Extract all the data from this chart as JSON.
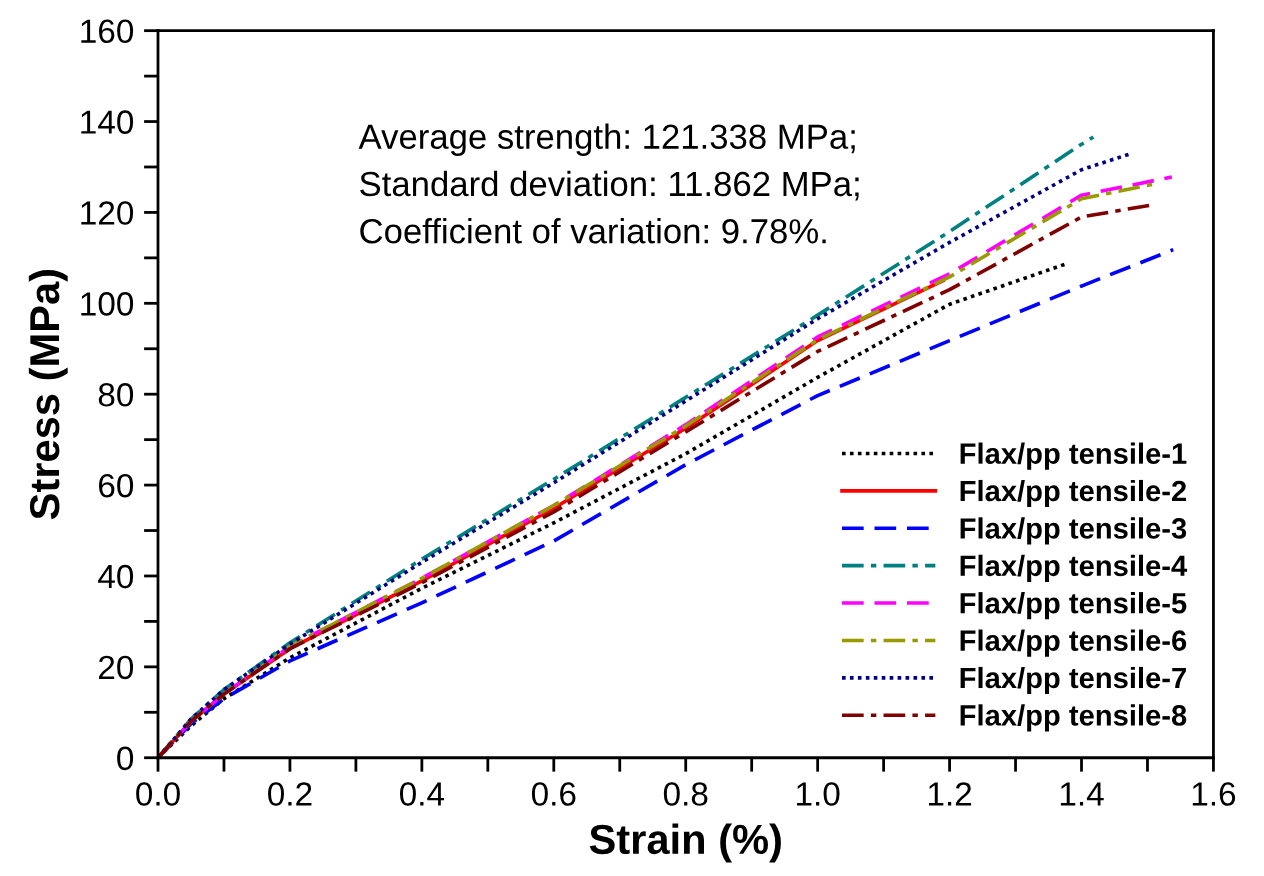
{
  "chart_data": {
    "type": "line",
    "xlabel": "Strain (%)",
    "ylabel": "Stress (MPa)",
    "xlim": [
      0,
      1.6
    ],
    "ylim": [
      0,
      160
    ],
    "xticks": [
      {
        "value": 0,
        "label": "0.0"
      },
      {
        "value": 0.1,
        "label": null
      },
      {
        "value": 0.2,
        "label": "0.2"
      },
      {
        "value": 0.3,
        "label": null
      },
      {
        "value": 0.4,
        "label": "0.4"
      },
      {
        "value": 0.5,
        "label": null
      },
      {
        "value": 0.6,
        "label": "0.6"
      },
      {
        "value": 0.7,
        "label": null
      },
      {
        "value": 0.8,
        "label": "0.8"
      },
      {
        "value": 0.9,
        "label": null
      },
      {
        "value": 1.0,
        "label": "1.0"
      },
      {
        "value": 1.1,
        "label": null
      },
      {
        "value": 1.2,
        "label": "1.2"
      },
      {
        "value": 1.3,
        "label": null
      },
      {
        "value": 1.4,
        "label": "1.4"
      },
      {
        "value": 1.5,
        "label": null
      },
      {
        "value": 1.6,
        "label": "1.6"
      }
    ],
    "yticks": [
      0,
      {
        "value": 10,
        "label": null
      },
      20,
      {
        "value": 30,
        "label": null
      },
      40,
      {
        "value": 50,
        "label": null
      },
      60,
      {
        "value": 70,
        "label": null
      },
      80,
      {
        "value": 90,
        "label": null
      },
      100,
      {
        "value": 110,
        "label": null
      },
      120,
      {
        "value": 130,
        "label": null
      },
      140,
      {
        "value": 150,
        "label": null
      },
      160
    ],
    "grid": false,
    "legend": "bottom right",
    "annotations": [
      "Average strength: 121.338 MPa;",
      "Standard deviation: 11.862 MPa;",
      "Coefficient of variation: 9.78%."
    ],
    "series": [
      {
        "name": "Flax/pp tensile-1",
        "color": "#000000",
        "line_style": "dotted",
        "x": [
          0,
          0.05,
          0.1,
          0.2,
          0.4,
          0.6,
          0.8,
          1.0,
          1.2,
          1.375
        ],
        "values": [
          0,
          7,
          13,
          22,
          37.3,
          51.7,
          66.9,
          83.7,
          99.8,
          108.6
        ]
      },
      {
        "name": "Flax/pp tensile-2",
        "color": "#ff0000",
        "line_style": "solid",
        "x": [
          0,
          0.05,
          0.1,
          0.2,
          0.4,
          0.6,
          0.8,
          1.0,
          1.19
        ],
        "values": [
          0,
          8,
          14,
          24,
          38.9,
          54.9,
          72.5,
          91.8,
          105
        ]
      },
      {
        "name": "Flax/pp tensile-3",
        "color": "#0000ff",
        "line_style": "dashed",
        "x": [
          0,
          0.05,
          0.1,
          0.2,
          0.4,
          0.6,
          0.8,
          1.0,
          1.2,
          1.4,
          1.539
        ],
        "values": [
          0,
          7.5,
          13,
          21.3,
          34.1,
          47.7,
          64.5,
          79.7,
          91.8,
          103.8,
          111.8
        ]
      },
      {
        "name": "Flax/pp tensile-4",
        "color": "#008080",
        "line_style": "dashdot",
        "x": [
          0,
          0.05,
          0.1,
          0.2,
          0.4,
          0.6,
          0.8,
          1.0,
          1.2,
          1.4,
          1.418
        ],
        "values": [
          0,
          8.5,
          15,
          25.3,
          43.7,
          61.3,
          79.3,
          97.4,
          115.8,
          135,
          136.6
        ]
      },
      {
        "name": "Flax/pp tensile-5",
        "color": "#ff00ff",
        "line_style": "dashed",
        "x": [
          0,
          0.05,
          0.1,
          0.2,
          0.4,
          0.6,
          0.8,
          1.0,
          1.2,
          1.4,
          1.537
        ],
        "values": [
          0,
          8,
          14,
          24.5,
          39.5,
          55.5,
          73.3,
          92.6,
          106.5,
          123.8,
          127.8
        ]
      },
      {
        "name": "Flax/pp tensile-6",
        "color": "#999900",
        "line_style": "dashdot",
        "x": [
          0,
          0.05,
          0.1,
          0.2,
          0.4,
          0.6,
          0.8,
          1.0,
          1.2,
          1.4,
          1.509
        ],
        "values": [
          0,
          8,
          14,
          24.5,
          39.5,
          55.5,
          73,
          92,
          105.8,
          123,
          126.2
        ]
      },
      {
        "name": "Flax/pp tensile-7",
        "color": "#000080",
        "line_style": "dotted",
        "x": [
          0,
          0.05,
          0.1,
          0.2,
          0.4,
          0.6,
          0.8,
          1.0,
          1.2,
          1.4,
          1.474
        ],
        "values": [
          0,
          8.5,
          15,
          25,
          43,
          60.5,
          78.5,
          96.6,
          113.4,
          129.4,
          132.9
        ]
      },
      {
        "name": "Flax/pp tensile-8",
        "color": "#800000",
        "line_style": "dashdot",
        "x": [
          0,
          0.05,
          0.1,
          0.2,
          0.4,
          0.6,
          0.8,
          1.0,
          1.2,
          1.4,
          1.509
        ],
        "values": [
          0,
          8,
          14,
          24,
          38.5,
          54.1,
          71.7,
          89.4,
          103,
          119,
          121.7
        ]
      }
    ]
  }
}
